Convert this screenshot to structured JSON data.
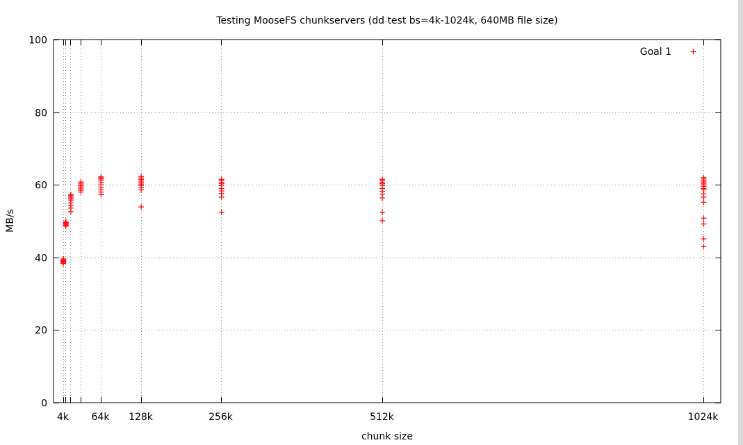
{
  "chart_data": {
    "type": "scatter",
    "title": "Testing MooseFS chunkservers (dd test bs=4k-1024k, 640MB file size)",
    "xlabel": "chunk size",
    "ylabel": "MB/s",
    "xlim": [
      0,
      1024
    ],
    "ylim": [
      0,
      100
    ],
    "grid": true,
    "legend_position": "top-right",
    "colors": {
      "series": "#ff0000",
      "grid": "#888888",
      "axis": "#000000"
    },
    "xticks": [
      {
        "value": 4,
        "label": "4k"
      },
      {
        "value": 8,
        "label": ""
      },
      {
        "value": 16,
        "label": ""
      },
      {
        "value": 32,
        "label": ""
      },
      {
        "value": 64,
        "label": "64k"
      },
      {
        "value": 128,
        "label": "128k"
      },
      {
        "value": 256,
        "label": "256k"
      },
      {
        "value": 512,
        "label": "512k"
      },
      {
        "value": 1024,
        "label": "1024k"
      }
    ],
    "yticks": [
      0,
      20,
      40,
      60,
      80,
      100
    ],
    "series": [
      {
        "name": "Goal 1",
        "marker": "plus",
        "points": [
          [
            4,
            39.6
          ],
          [
            4,
            39.3
          ],
          [
            4,
            39.0
          ],
          [
            4,
            38.8
          ],
          [
            4,
            38.5
          ],
          [
            4,
            39.2
          ],
          [
            4,
            38.3
          ],
          [
            8,
            50.0
          ],
          [
            8,
            49.6
          ],
          [
            8,
            49.3
          ],
          [
            8,
            49.0
          ],
          [
            8,
            48.8
          ],
          [
            8,
            49.5
          ],
          [
            8,
            48.6
          ],
          [
            16,
            57.3
          ],
          [
            16,
            57.0
          ],
          [
            16,
            56.6
          ],
          [
            16,
            56.2
          ],
          [
            16,
            55.8
          ],
          [
            16,
            55.0
          ],
          [
            16,
            54.3
          ],
          [
            16,
            53.6
          ],
          [
            16,
            52.6
          ],
          [
            32,
            60.8
          ],
          [
            32,
            60.4
          ],
          [
            32,
            60.0
          ],
          [
            32,
            59.7
          ],
          [
            32,
            59.3
          ],
          [
            32,
            58.9
          ],
          [
            32,
            58.5
          ],
          [
            32,
            58.0
          ],
          [
            64,
            62.2
          ],
          [
            64,
            61.9
          ],
          [
            64,
            61.6
          ],
          [
            64,
            61.2
          ],
          [
            64,
            60.6
          ],
          [
            64,
            60.0
          ],
          [
            64,
            59.3
          ],
          [
            64,
            58.6
          ],
          [
            64,
            58.0
          ],
          [
            64,
            57.3
          ],
          [
            128,
            62.3
          ],
          [
            128,
            61.9
          ],
          [
            128,
            61.5
          ],
          [
            128,
            61.0
          ],
          [
            128,
            60.6
          ],
          [
            128,
            60.2
          ],
          [
            128,
            59.8
          ],
          [
            128,
            59.2
          ],
          [
            128,
            58.6
          ],
          [
            128,
            53.9
          ],
          [
            256,
            61.5
          ],
          [
            256,
            61.1
          ],
          [
            256,
            60.7
          ],
          [
            256,
            60.3
          ],
          [
            256,
            59.8
          ],
          [
            256,
            59.0
          ],
          [
            256,
            58.3
          ],
          [
            256,
            57.6
          ],
          [
            256,
            56.6
          ],
          [
            256,
            52.4
          ],
          [
            512,
            61.5
          ],
          [
            512,
            61.1
          ],
          [
            512,
            60.7
          ],
          [
            512,
            60.3
          ],
          [
            512,
            59.8
          ],
          [
            512,
            59.0
          ],
          [
            512,
            58.2
          ],
          [
            512,
            57.4
          ],
          [
            512,
            56.4
          ],
          [
            512,
            52.4
          ],
          [
            512,
            50.1
          ],
          [
            1024,
            62.0
          ],
          [
            1024,
            61.6
          ],
          [
            1024,
            61.2
          ],
          [
            1024,
            60.8
          ],
          [
            1024,
            60.4
          ],
          [
            1024,
            60.0
          ],
          [
            1024,
            59.6
          ],
          [
            1024,
            59.0
          ],
          [
            1024,
            58.6
          ],
          [
            1024,
            57.5
          ],
          [
            1024,
            56.6
          ],
          [
            1024,
            55.2
          ],
          [
            1024,
            50.8
          ],
          [
            1024,
            49.2
          ],
          [
            1024,
            45.1
          ],
          [
            1024,
            43.0
          ]
        ]
      }
    ]
  }
}
